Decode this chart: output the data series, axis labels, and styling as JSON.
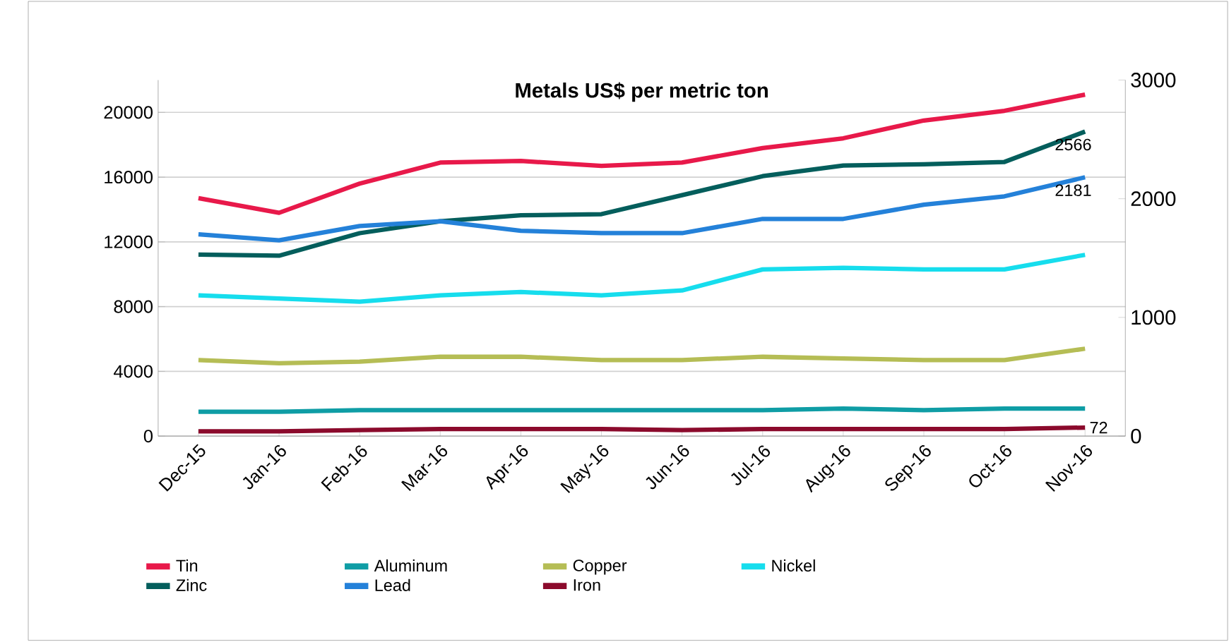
{
  "chart_data": {
    "type": "line",
    "title": "Metals US$ per metric ton",
    "categories": [
      "Dec-15",
      "Jan-16",
      "Feb-16",
      "Mar-16",
      "Apr-16",
      "May-16",
      "Jun-16",
      "Jul-16",
      "Aug-16",
      "Sep-16",
      "Oct-16",
      "Nov-16"
    ],
    "ylim": [
      0,
      22000
    ],
    "yticks": [
      0,
      4000,
      8000,
      12000,
      16000,
      20000
    ],
    "y2lim": [
      0,
      3000
    ],
    "y2ticks": [
      0,
      1000,
      2000,
      3000
    ],
    "grid": "y",
    "legend": "bottom",
    "marker": "none",
    "line_style": "solid",
    "series": [
      {
        "name": "Tin",
        "color": "#e8194a",
        "values": [
          14700,
          13800,
          15600,
          16900,
          17000,
          16700,
          16900,
          17800,
          18400,
          19500,
          20100,
          21100
        ]
      },
      {
        "name": "Aluminum",
        "color": "#0f9da5",
        "values": [
          1500,
          1500,
          1600,
          1600,
          1600,
          1600,
          1600,
          1600,
          1700,
          1600,
          1700,
          1700
        ]
      },
      {
        "name": "Copper",
        "color": "#b5bd55",
        "values": [
          4700,
          4500,
          4600,
          4900,
          4900,
          4700,
          4700,
          4900,
          4800,
          4700,
          4700,
          5400
        ]
      },
      {
        "name": "Nickel",
        "color": "#16dded",
        "values": [
          8700,
          8500,
          8300,
          8700,
          8900,
          8700,
          9000,
          10300,
          10400,
          10300,
          10300,
          11200
        ]
      },
      {
        "name": "Zinc",
        "color": "#045e5c",
        "axis": "y2",
        "values": [
          1530,
          1520,
          1710,
          1810,
          1860,
          1870,
          2030,
          2190,
          2280,
          2290,
          2310,
          2566
        ],
        "value_labels": [
          null,
          null,
          null,
          null,
          null,
          null,
          null,
          null,
          null,
          null,
          null,
          "2566"
        ]
      },
      {
        "name": "Lead",
        "color": "#2481d9",
        "axis": "y2",
        "values": [
          1700,
          1650,
          1770,
          1810,
          1730,
          1710,
          1710,
          1830,
          1830,
          1950,
          2020,
          2181
        ],
        "value_labels": [
          null,
          null,
          null,
          null,
          null,
          null,
          null,
          null,
          null,
          null,
          null,
          "2181"
        ]
      },
      {
        "name": "Iron",
        "color": "#8b0a2c",
        "axis": "y2",
        "values": [
          40,
          40,
          50,
          60,
          60,
          60,
          50,
          60,
          60,
          60,
          60,
          72
        ],
        "value_labels": [
          null,
          null,
          null,
          null,
          null,
          null,
          null,
          null,
          null,
          null,
          null,
          "72"
        ]
      }
    ]
  }
}
